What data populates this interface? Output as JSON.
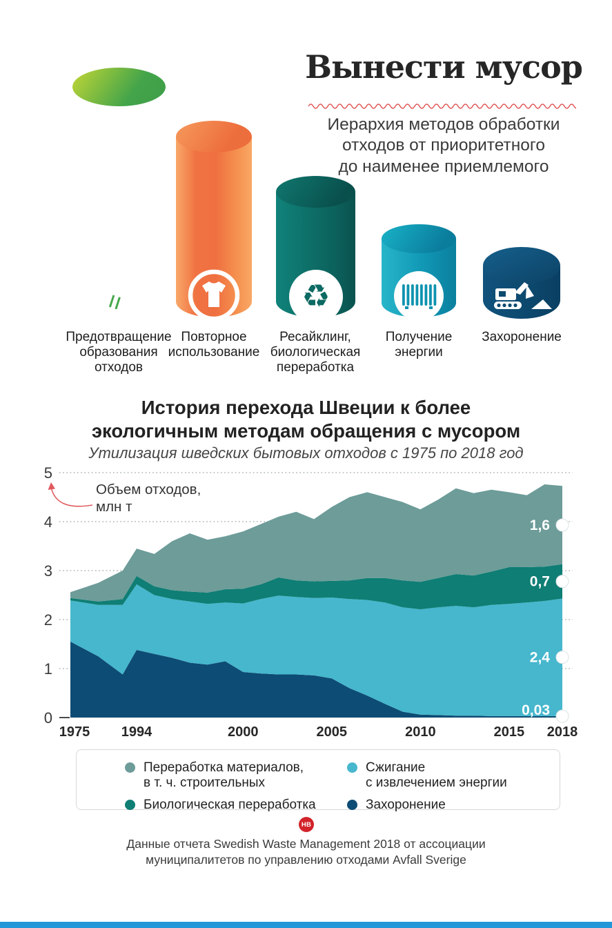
{
  "header": {
    "title": "Вынести мусор",
    "subtitle": "Иерархия методов обработки\nотходов от приоритетного\nдо наименее приемлемого"
  },
  "hierarchy": {
    "items": [
      {
        "label": "Предотвращение\nобразования\nотходов",
        "icon": "hand-over-waste-icon",
        "color": "#4aa94b"
      },
      {
        "label": "Повторное\nиспользование",
        "icon": "tshirt-icon",
        "color": "#f07342"
      },
      {
        "label": "Ресайклинг,\nбиологическая\nпереработка",
        "icon": "recycle-icon",
        "color": "#0e6f68"
      },
      {
        "label": "Получение\nэнергии",
        "icon": "radiator-icon",
        "color": "#1098b5"
      },
      {
        "label": "Захоронение",
        "icon": "excavator-icon",
        "color": "#0d4a70"
      }
    ]
  },
  "chart": {
    "title": "История перехода Швеции к более\nэкологичным методам обращения с мусором",
    "subtitle": "Утилизация шведских бытовых отходов с 1975 по 2018 год",
    "y_annotation": "Объем отходов,\nмлн т"
  },
  "chart_data": {
    "type": "area",
    "stacked": true,
    "title": "История перехода Швеции к более экологичным методам обращения с мусором",
    "subtitle": "Утилизация шведских бытовых отходов с 1975 по 2018 год",
    "ylabel": "Объем отходов, млн т",
    "ylim": [
      0,
      5
    ],
    "yticks": [
      0,
      1,
      2,
      3,
      4,
      5
    ],
    "grid": "dotted-horizontal",
    "x_axis_note": "broken axis: 1975 compressed, linear from 1994 to 2018",
    "x_axis_ticks": [
      1975,
      1994,
      2000,
      2005,
      2010,
      2015,
      2018
    ],
    "x": [
      1975,
      1983,
      1990,
      1994,
      1995,
      1996,
      1997,
      1998,
      1999,
      2000,
      2001,
      2002,
      2003,
      2004,
      2005,
      2006,
      2007,
      2008,
      2009,
      2010,
      2011,
      2012,
      2013,
      2014,
      2015,
      2016,
      2017,
      2018
    ],
    "series": [
      {
        "name": "Захоронение",
        "color": "#0d4c74",
        "end_label": "0,03",
        "end_value": 0.03,
        "values": [
          1.55,
          1.25,
          0.88,
          1.38,
          1.3,
          1.22,
          1.12,
          1.08,
          1.15,
          0.93,
          0.9,
          0.88,
          0.88,
          0.86,
          0.8,
          0.6,
          0.45,
          0.28,
          0.12,
          0.06,
          0.05,
          0.04,
          0.04,
          0.03,
          0.03,
          0.03,
          0.03,
          0.03
        ]
      },
      {
        "name": "Сжигание с извлечением энергии",
        "color": "#46b7cd",
        "end_label": "2,4",
        "end_value": 2.4,
        "values": [
          0.84,
          1.05,
          1.42,
          1.34,
          1.2,
          1.2,
          1.25,
          1.24,
          1.2,
          1.4,
          1.52,
          1.61,
          1.58,
          1.58,
          1.65,
          1.82,
          1.95,
          2.07,
          2.13,
          2.15,
          2.2,
          2.24,
          2.21,
          2.27,
          2.29,
          2.32,
          2.35,
          2.4
        ]
      },
      {
        "name": "Биологическая переработка",
        "color": "#0f7e74",
        "end_label": "0,7",
        "end_value": 0.7,
        "values": [
          0.05,
          0.07,
          0.12,
          0.17,
          0.18,
          0.18,
          0.2,
          0.23,
          0.27,
          0.3,
          0.3,
          0.37,
          0.34,
          0.34,
          0.34,
          0.38,
          0.45,
          0.5,
          0.55,
          0.56,
          0.6,
          0.65,
          0.65,
          0.68,
          0.75,
          0.72,
          0.7,
          0.7
        ]
      },
      {
        "name": "Переработка материалов, в т. ч. строительных",
        "color": "#6d9c99",
        "end_label": "1,6",
        "end_value": 1.6,
        "values": [
          0.12,
          0.38,
          0.58,
          0.56,
          0.66,
          1.0,
          1.19,
          1.08,
          1.08,
          1.17,
          1.23,
          1.24,
          1.4,
          1.27,
          1.51,
          1.7,
          1.75,
          1.65,
          1.6,
          1.48,
          1.6,
          1.75,
          1.68,
          1.67,
          1.53,
          1.47,
          1.68,
          1.6
        ]
      }
    ]
  },
  "legend": {
    "items": [
      {
        "label": "Переработка материалов,\nв т. ч. строительных",
        "color": "#6d9c99"
      },
      {
        "label": "Сжигание\nс извлечением энергии",
        "color": "#46b7cd"
      },
      {
        "label": "Биологическая переработка",
        "color": "#0f7e74"
      },
      {
        "label": "Захоронение",
        "color": "#0d4c74"
      }
    ]
  },
  "footer": {
    "logo": "НВ",
    "source": "Данные отчета Swedish Waste Management 2018 от ассоциации\nмуниципалитетов по управлению отходами Avfall Sverige"
  }
}
